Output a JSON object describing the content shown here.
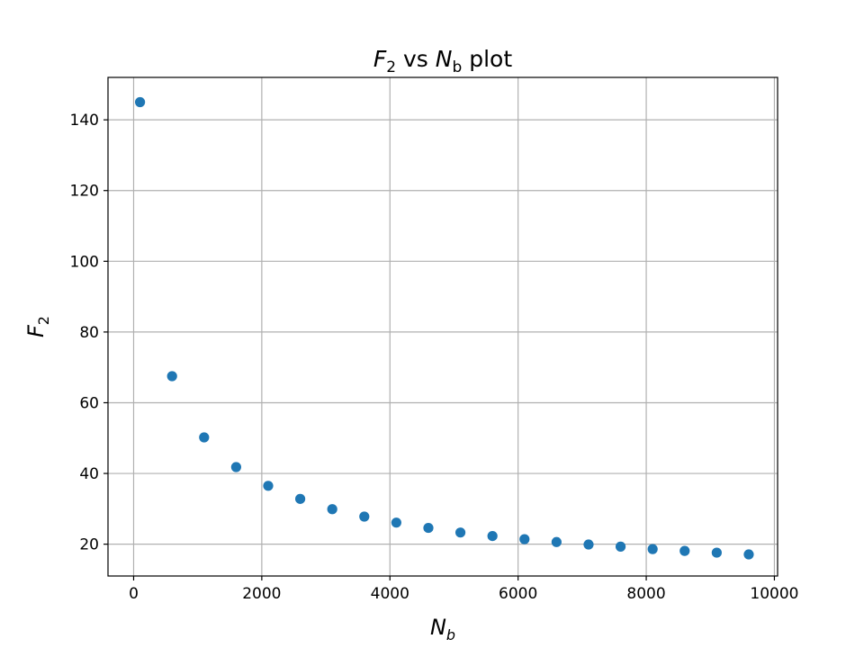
{
  "chart_data": {
    "type": "scatter",
    "title": {
      "main": "F",
      "sub": "2",
      "mid": " vs ",
      "main2": "N",
      "sub2": "b",
      "tail": " plot"
    },
    "xlabel": {
      "main": "N",
      "sub": "b"
    },
    "ylabel": {
      "main": "F",
      "sub": "2"
    },
    "xlim": [
      -400,
      10050
    ],
    "ylim": [
      11,
      152
    ],
    "xticks": [
      0,
      2000,
      4000,
      6000,
      8000,
      10000
    ],
    "yticks": [
      20,
      40,
      60,
      80,
      100,
      120,
      140
    ],
    "grid": true,
    "color": "#1f77b4",
    "series": [
      {
        "x": [
          100,
          600,
          1100,
          1600,
          2100,
          2600,
          3100,
          3600,
          4100,
          4600,
          5100,
          5600,
          6100,
          6600,
          7100,
          7600,
          8100,
          8600,
          9100,
          9600
        ],
        "y": [
          145.0,
          67.5,
          50.2,
          41.8,
          36.5,
          32.8,
          29.9,
          27.8,
          26.1,
          24.6,
          23.3,
          22.3,
          21.4,
          20.6,
          19.9,
          19.3,
          18.6,
          18.1,
          17.6,
          17.1
        ]
      }
    ]
  }
}
